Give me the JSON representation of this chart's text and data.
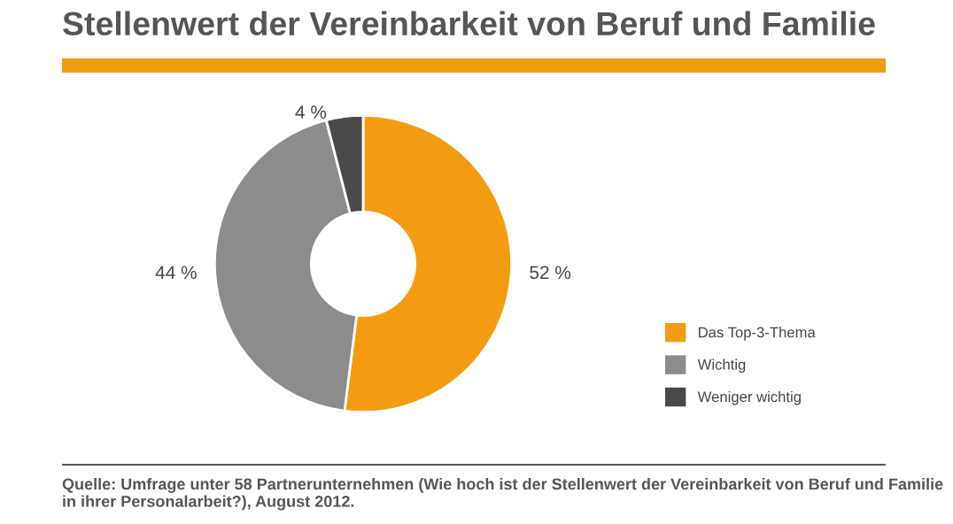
{
  "chart_data": {
    "type": "donut",
    "title": "Stellenwert der Vereinbarkeit von Beruf und Familie",
    "categories": [
      "Das Top-3-Thema",
      "Wichtig",
      "Weniger wichtig"
    ],
    "values": [
      52,
      44,
      4
    ],
    "colors": [
      "#f39c12",
      "#8c8c8c",
      "#4a4a4a"
    ],
    "value_labels": [
      "52 %",
      "44 %",
      "4 %"
    ],
    "legend": "right",
    "annotations": [
      "Quelle: Umfrage unter 58 Partnerunternehmen (Wie hoch ist der Stellenwert der Vereinbarkeit von Beruf und Familie in ihrer Personalarbeit?), August 2012."
    ]
  }
}
